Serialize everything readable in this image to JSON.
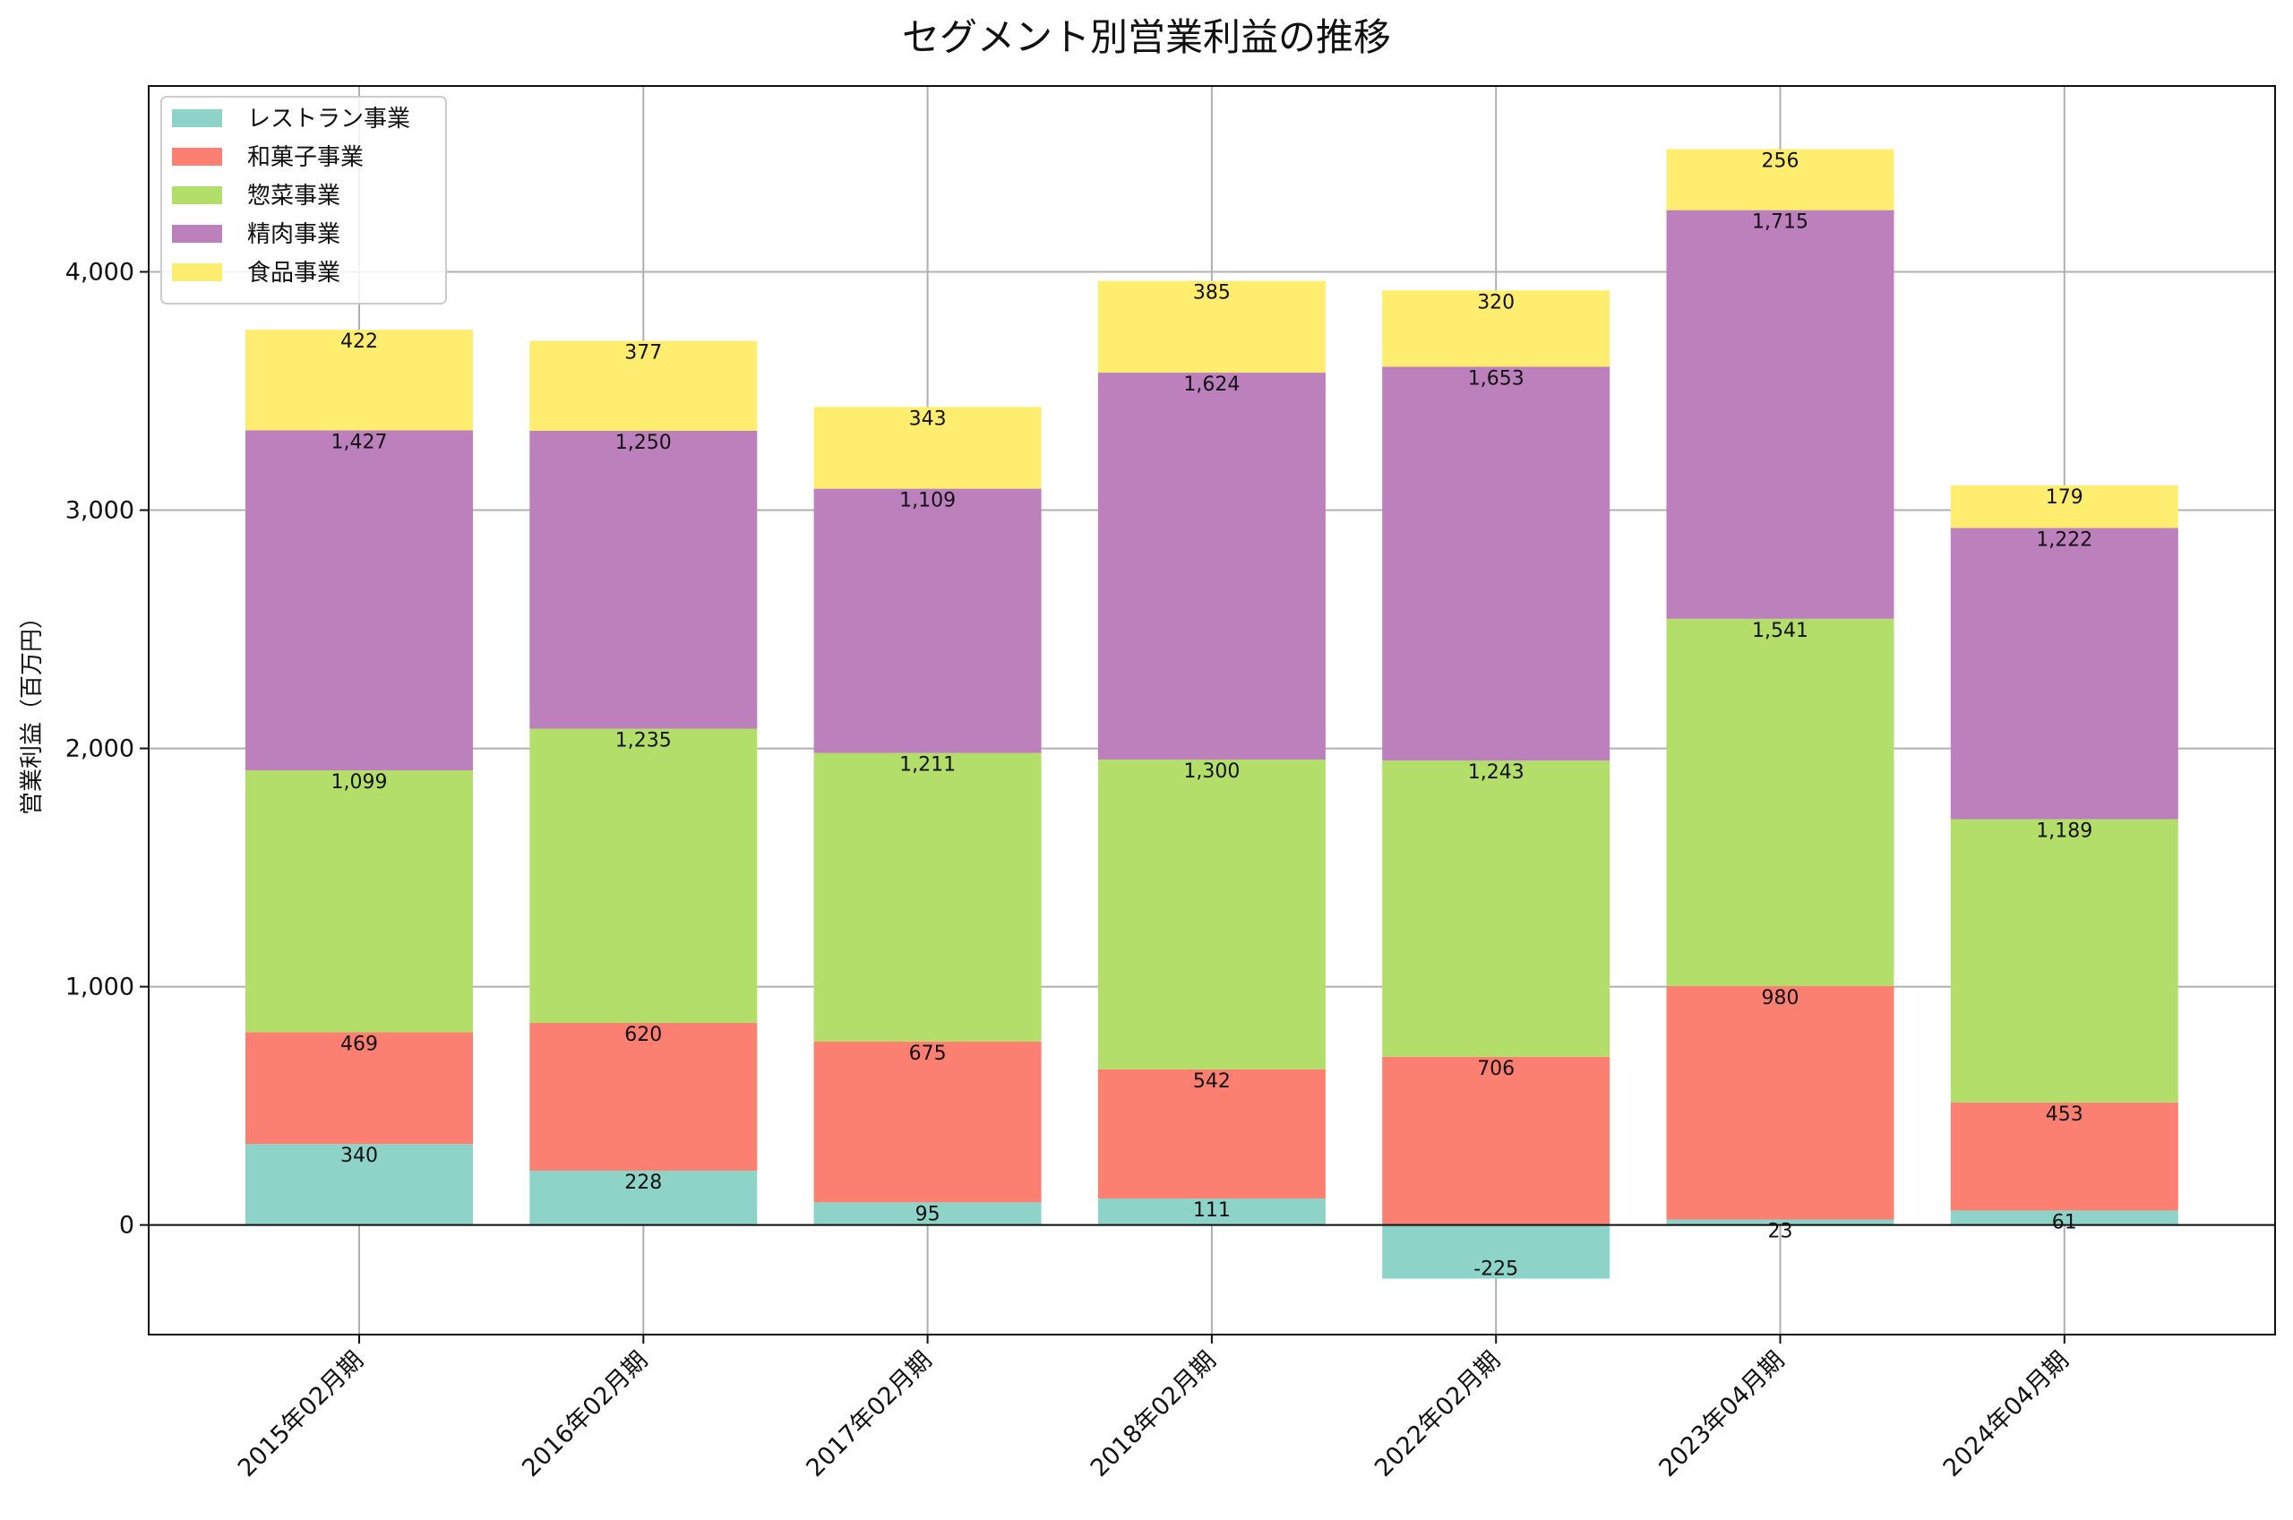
{
  "chart_data": {
    "type": "bar",
    "stacked": true,
    "title": "セグメント別営業利益の推移",
    "xlabel": "",
    "ylabel": "営業利益（百万円）",
    "ylim": [
      -460,
      4780
    ],
    "yticks": [
      0,
      1000,
      2000,
      3000,
      4000
    ],
    "ytick_labels": [
      "0",
      "1,000",
      "2,000",
      "3,000",
      "4,000"
    ],
    "grid": true,
    "legend_position": "top-left",
    "categories": [
      "2015年02月期",
      "2016年02月期",
      "2017年02月期",
      "2018年02月期",
      "2022年02月期",
      "2023年04月期",
      "2024年04月期"
    ],
    "series": [
      {
        "name": "レストラン事業",
        "color": "#8dd3c7",
        "values": [
          340,
          228,
          95,
          111,
          -225,
          23,
          61
        ],
        "labels": [
          "340",
          "228",
          "95",
          "111",
          "-225",
          "23",
          "61"
        ]
      },
      {
        "name": "和菓子事業",
        "color": "#fb8072",
        "values": [
          469,
          620,
          675,
          542,
          706,
          980,
          453
        ],
        "labels": [
          "469",
          "620",
          "675",
          "542",
          "706",
          "980",
          "453"
        ]
      },
      {
        "name": "惣菜事業",
        "color": "#b3de69",
        "values": [
          1099,
          1235,
          1211,
          1300,
          1243,
          1541,
          1189
        ],
        "labels": [
          "1,099",
          "1,235",
          "1,211",
          "1,300",
          "1,243",
          "1,541",
          "1,189"
        ]
      },
      {
        "name": "精肉事業",
        "color": "#bc80bd",
        "values": [
          1427,
          1250,
          1109,
          1624,
          1653,
          1715,
          1222
        ],
        "labels": [
          "1,427",
          "1,250",
          "1,109",
          "1,624",
          "1,653",
          "1,715",
          "1,222"
        ]
      },
      {
        "name": "食品事業",
        "color": "#ffed6f",
        "values": [
          422,
          377,
          343,
          385,
          320,
          256,
          179
        ],
        "labels": [
          "422",
          "377",
          "343",
          "385",
          "320",
          "256",
          "179"
        ]
      }
    ]
  }
}
